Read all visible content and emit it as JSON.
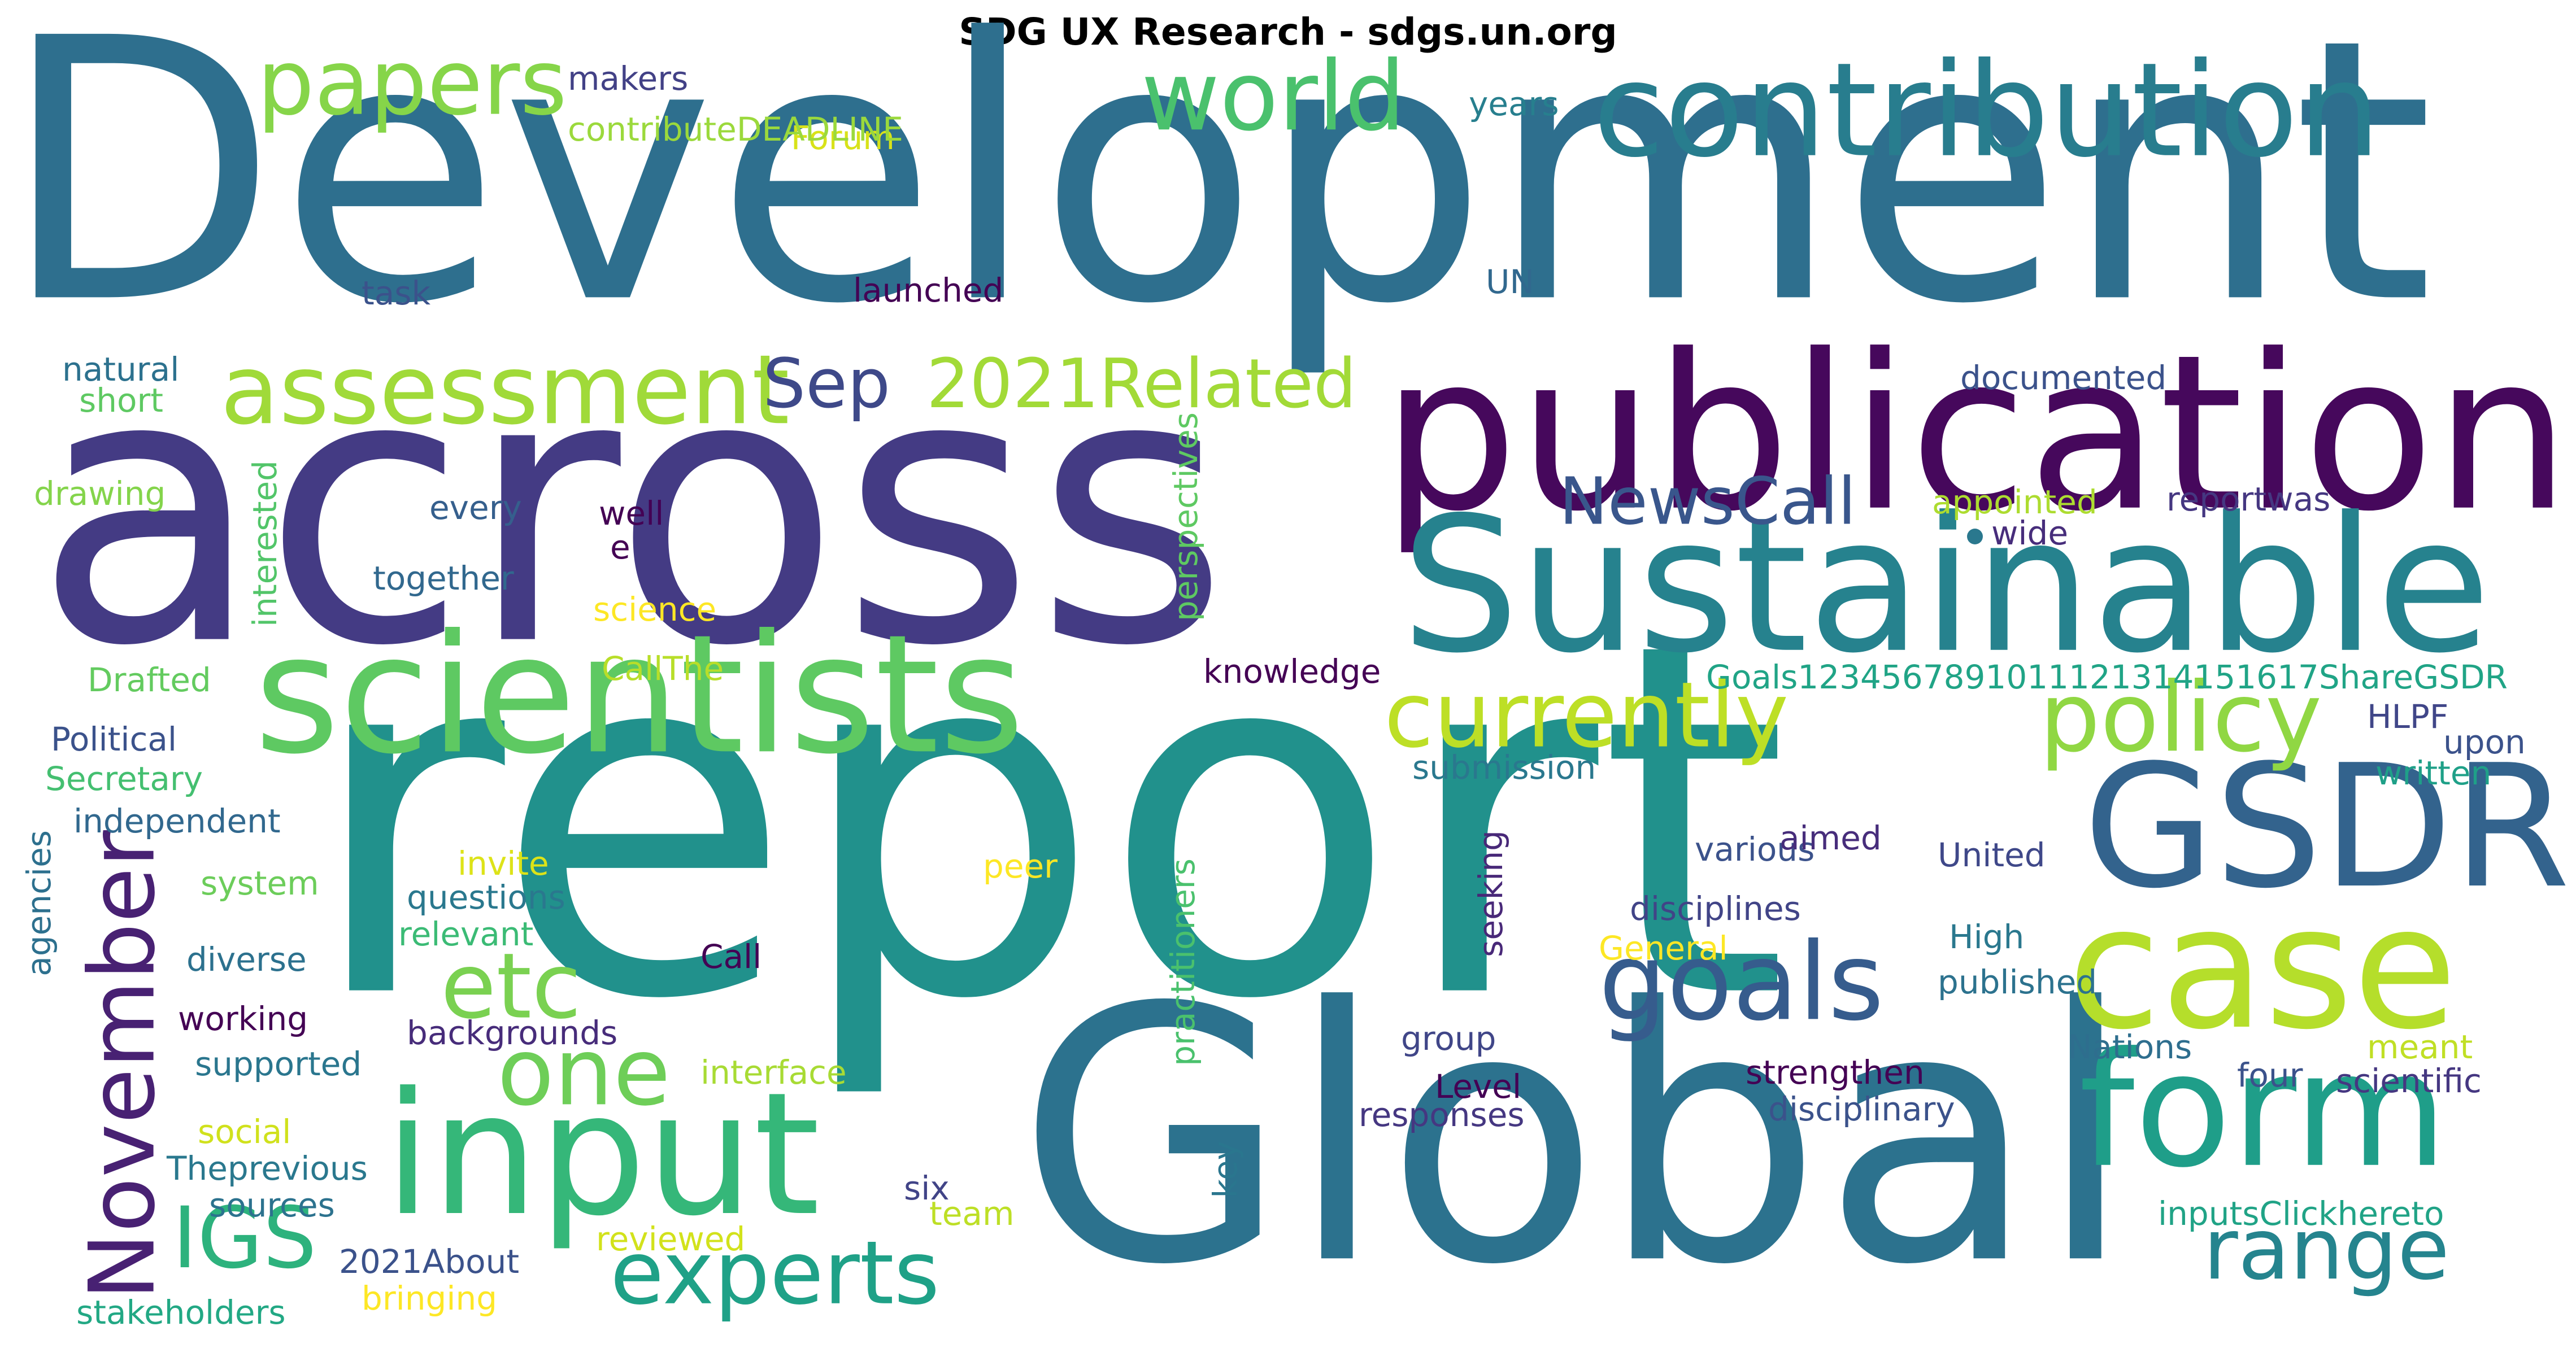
{
  "title": "SDG UX Research - sdgs.un.org",
  "words": [
    {
      "text": "Development",
      "color": "#2e6f8e"
    },
    {
      "text": "across",
      "color": "#443b84"
    },
    {
      "text": "report",
      "color": "#21918c"
    },
    {
      "text": "Global",
      "color": "#2c728e"
    },
    {
      "text": "publication",
      "color": "#46085c"
    },
    {
      "text": "Sustainable",
      "color": "#26828e"
    },
    {
      "text": "scientists",
      "color": "#5ec962"
    },
    {
      "text": "contribution",
      "color": "#287d8e"
    },
    {
      "text": "GSDR",
      "color": "#33638d"
    },
    {
      "text": "case",
      "color": "#b5de2b"
    },
    {
      "text": "input",
      "color": "#35b779"
    },
    {
      "text": "form",
      "color": "#1f9e89"
    },
    {
      "text": "assessment",
      "color": "#a0da39"
    },
    {
      "text": "currently",
      "color": "#bddf26"
    },
    {
      "text": "policy",
      "color": "#90d743"
    },
    {
      "text": "papers",
      "color": "#86d549"
    },
    {
      "text": "world",
      "color": "#4ac16d"
    },
    {
      "text": "goals",
      "color": "#365c8d"
    },
    {
      "text": "experts",
      "color": "#1fa187"
    },
    {
      "text": "range",
      "color": "#25848e"
    },
    {
      "text": "one",
      "color": "#6ece58"
    },
    {
      "text": "etc",
      "color": "#7ad151"
    },
    {
      "text": "November",
      "color": "#482173"
    },
    {
      "text": "IGS",
      "color": "#2db27d"
    },
    {
      "text": "Sep",
      "color": "#3e4989"
    },
    {
      "text": "2021Related",
      "color": "#a2da37"
    },
    {
      "text": "NewsCall",
      "color": "#39568c"
    },
    {
      "text": "makers",
      "color": "#424186"
    },
    {
      "text": "Forum",
      "color": "#d8e219"
    },
    {
      "text": "contributeDEADLINE",
      "color": "#9bd93c"
    },
    {
      "text": "years",
      "color": "#277f8e"
    },
    {
      "text": "task",
      "color": "#3b528b"
    },
    {
      "text": "launched",
      "color": "#440154"
    },
    {
      "text": "UN",
      "color": "#31688e"
    },
    {
      "text": "natural",
      "color": "#2c718e"
    },
    {
      "text": "short",
      "color": "#5ec962"
    },
    {
      "text": "documented",
      "color": "#3b528b"
    },
    {
      "text": "drawing",
      "color": "#84d44b"
    },
    {
      "text": "perspectives",
      "color": "#5ec962"
    },
    {
      "text": "interested",
      "color": "#52c569"
    },
    {
      "text": "every",
      "color": "#355f8d"
    },
    {
      "text": "well",
      "color": "#440154"
    },
    {
      "text": "e",
      "color": "#440154"
    },
    {
      "text": "appointed",
      "color": "#addc30"
    },
    {
      "text": "reportwas",
      "color": "#453781"
    },
    {
      "text": "wide",
      "color": "#472d7b"
    },
    {
      "text": "together",
      "color": "#31688e"
    },
    {
      "text": "science",
      "color": "#fde725"
    },
    {
      "text": "CallThe",
      "color": "#b8de29"
    },
    {
      "text": "knowledge",
      "color": "#440154"
    },
    {
      "text": "Drafted",
      "color": "#63cb5f"
    },
    {
      "text": "Goals1234567891011121314151617ShareGSDR",
      "color": "#20a486"
    },
    {
      "text": "HLPF",
      "color": "#404688"
    },
    {
      "text": "Political",
      "color": "#3b528b"
    },
    {
      "text": "upon",
      "color": "#3b528b"
    },
    {
      "text": "Secretary",
      "color": "#44bf70"
    },
    {
      "text": "submission",
      "color": "#2a788e"
    },
    {
      "text": "written",
      "color": "#1fa088"
    },
    {
      "text": "independent",
      "color": "#31688e"
    },
    {
      "text": "agencies",
      "color": "#2d708e"
    },
    {
      "text": "invite",
      "color": "#dde318"
    },
    {
      "text": "various",
      "color": "#3b528b"
    },
    {
      "text": "United",
      "color": "#3f4889"
    },
    {
      "text": "peer",
      "color": "#fde725"
    },
    {
      "text": "aimed",
      "color": "#472d7b"
    },
    {
      "text": "system",
      "color": "#6ccd5a"
    },
    {
      "text": "questions",
      "color": "#2a788e"
    },
    {
      "text": "seeking",
      "color": "#482878"
    },
    {
      "text": "disciplines",
      "color": "#414487"
    },
    {
      "text": "relevant",
      "color": "#3bbb75"
    },
    {
      "text": "diverse",
      "color": "#2c718e"
    },
    {
      "text": "General",
      "color": "#fde725"
    },
    {
      "text": "High",
      "color": "#2a788e"
    },
    {
      "text": "Call",
      "color": "#440154"
    },
    {
      "text": "practitioners",
      "color": "#4ac16d"
    },
    {
      "text": "published",
      "color": "#2c728e"
    },
    {
      "text": "working",
      "color": "#440154"
    },
    {
      "text": "backgrounds",
      "color": "#472c7a"
    },
    {
      "text": "group",
      "color": "#404688"
    },
    {
      "text": "Nations",
      "color": "#2e6e8e"
    },
    {
      "text": "meant",
      "color": "#c0df25"
    },
    {
      "text": "supported",
      "color": "#2a768e"
    },
    {
      "text": "interface",
      "color": "#a8db34"
    },
    {
      "text": "strengthen",
      "color": "#440154"
    },
    {
      "text": "four",
      "color": "#3b528b"
    },
    {
      "text": "scientific",
      "color": "#453781"
    },
    {
      "text": "Level",
      "color": "#440154"
    },
    {
      "text": "responses",
      "color": "#453781"
    },
    {
      "text": "disciplinary",
      "color": "#3b528b"
    },
    {
      "text": "social",
      "color": "#d0e11c"
    },
    {
      "text": "Theprevious",
      "color": "#2a788e"
    },
    {
      "text": "key",
      "color": "#2a768e"
    },
    {
      "text": "sources",
      "color": "#2c728e"
    },
    {
      "text": "six",
      "color": "#414487"
    },
    {
      "text": "team",
      "color": "#bddf26"
    },
    {
      "text": "inputsClickhereto",
      "color": "#20a386"
    },
    {
      "text": "reviewed",
      "color": "#d2e21b"
    },
    {
      "text": "2021About",
      "color": "#3b528b"
    },
    {
      "text": "stakeholders",
      "color": "#22a884"
    },
    {
      "text": "bringing",
      "color": "#fde725"
    }
  ]
}
